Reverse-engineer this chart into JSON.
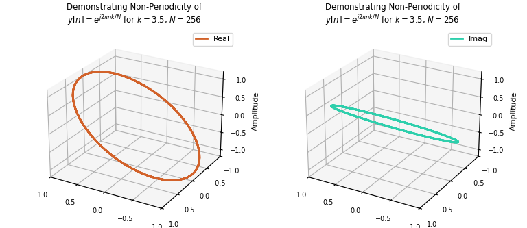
{
  "k": 3.5,
  "N": 256,
  "title_line1": "Demonstrating Non-Periodicity of",
  "title_line2": "$y[n] = e^{j2\\pi nk/N}$ for $k = 3.5$, $N = 256$",
  "real_color": "#D2622A",
  "imag_color": "#2ECFAC",
  "ylabel": "Amplitude",
  "real_label": "Real",
  "imag_label": "Imag",
  "zlim": [
    -1.2,
    1.2
  ],
  "line_width": 2.0,
  "elev": 25,
  "azim": -60
}
